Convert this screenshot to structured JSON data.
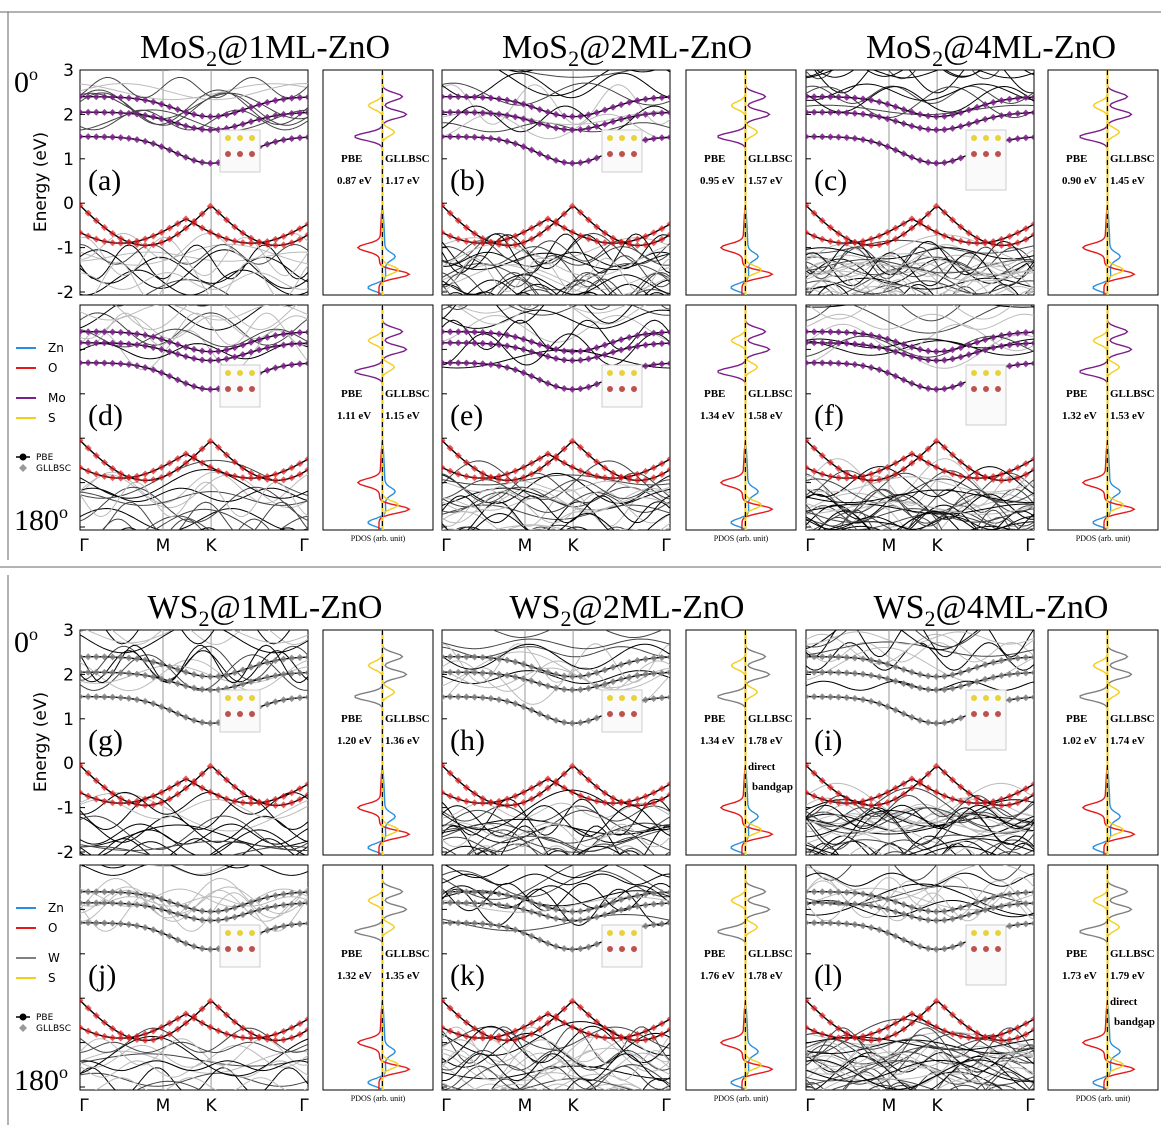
{
  "figure": {
    "ylabel": "Energy (eV)",
    "ylim": [
      -2,
      3
    ],
    "yticks": [
      3,
      2,
      1,
      0,
      -1,
      -2
    ],
    "kpath": [
      "Γ",
      "M",
      "K",
      "Γ"
    ],
    "pdos_label": "PDOS (arb. unit)",
    "pbe": "PBE",
    "gllbsc": "GLLBSC",
    "halves": [
      {
        "titles": [
          {
            "main": "MoS",
            "sub": "2",
            "rest": "@1ML-ZnO"
          },
          {
            "main": "MoS",
            "sub": "2",
            "rest": "@2ML-ZnO"
          },
          {
            "main": "MoS",
            "sub": "2",
            "rest": "@4ML-ZnO"
          }
        ],
        "angle_top": {
          "text": "0",
          "sup": "o"
        },
        "angle_bottom": {
          "text": "180",
          "sup": "o"
        },
        "legend": [
          {
            "name": "Zn",
            "color": "#2b8fe0"
          },
          {
            "name": "O",
            "color": "#e41a1c"
          },
          {
            "name": "Mo",
            "color": "#7b1f8a"
          },
          {
            "name": "S",
            "color": "#f2cf1b"
          }
        ],
        "marker_legend": [
          "PBE",
          "GLLBSC"
        ],
        "panels": [
          {
            "label": "(a)",
            "pbe_gap": "0.87 eV",
            "gllbsc_gap": "1.17 eV"
          },
          {
            "label": "(b)",
            "pbe_gap": "0.95 eV",
            "gllbsc_gap": "1.57 eV"
          },
          {
            "label": "(c)",
            "pbe_gap": "0.90 eV",
            "gllbsc_gap": "1.45 eV"
          },
          {
            "label": "(d)",
            "pbe_gap": "1.11 eV",
            "gllbsc_gap": "1.15  eV"
          },
          {
            "label": "(e)",
            "pbe_gap": "1.34 eV",
            "gllbsc_gap": "1.58 eV"
          },
          {
            "label": "(f)",
            "pbe_gap": "1.32 eV",
            "gllbsc_gap": "1.53 eV"
          }
        ]
      },
      {
        "titles": [
          {
            "main": "WS",
            "sub": "2",
            "rest": "@1ML-ZnO"
          },
          {
            "main": "WS",
            "sub": "2",
            "rest": "@2ML-ZnO"
          },
          {
            "main": "WS",
            "sub": "2",
            "rest": "@4ML-ZnO"
          }
        ],
        "angle_top": {
          "text": "0",
          "sup": "o"
        },
        "angle_bottom": {
          "text": "180",
          "sup": "o"
        },
        "legend": [
          {
            "name": "Zn",
            "color": "#2b8fe0"
          },
          {
            "name": "O",
            "color": "#e41a1c"
          },
          {
            "name": "W",
            "color": "#808080"
          },
          {
            "name": "S",
            "color": "#f2cf1b"
          }
        ],
        "marker_legend": [
          "PBE",
          "GLLBSC"
        ],
        "panels": [
          {
            "label": "(g)",
            "pbe_gap": "1.20 eV",
            "gllbsc_gap": "1.36 eV"
          },
          {
            "label": "(h)",
            "pbe_gap": "1.34 eV",
            "gllbsc_gap": "1.78 eV",
            "note": [
              "direct",
              "bandgap"
            ]
          },
          {
            "label": "(i)",
            "pbe_gap": "1.02 eV",
            "gllbsc_gap": "1.74 eV"
          },
          {
            "label": "(j)",
            "pbe_gap": "1.32 eV",
            "gllbsc_gap": "1.35 eV"
          },
          {
            "label": "(k)",
            "pbe_gap": "1.76 eV",
            "gllbsc_gap": "1.78 eV"
          },
          {
            "label": "(l)",
            "pbe_gap": "1.73 eV",
            "gllbsc_gap": "1.79 eV",
            "note": [
              "direct",
              "bandgap"
            ]
          }
        ]
      }
    ]
  }
}
